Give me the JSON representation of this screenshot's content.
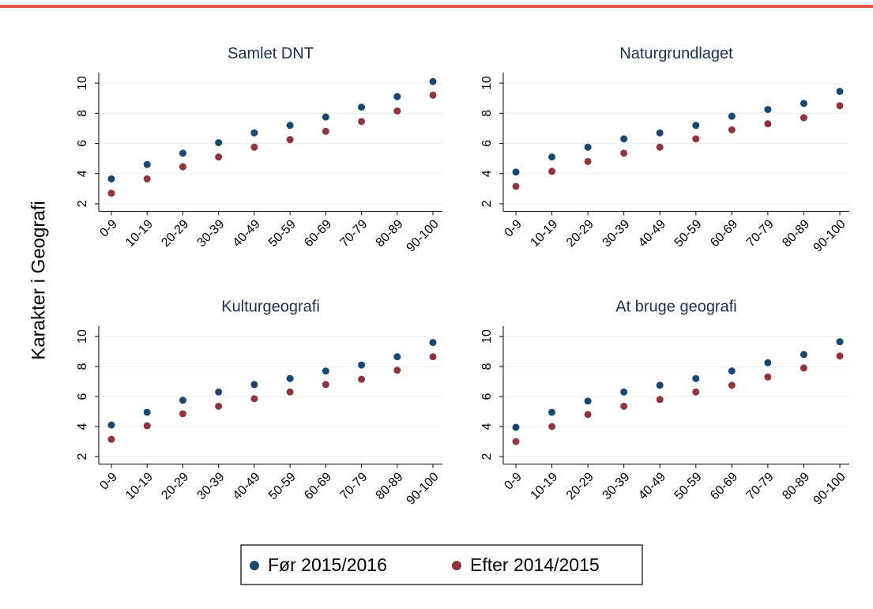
{
  "ylabel": "Karakter i Geografi",
  "chart_data": [
    {
      "type": "scatter",
      "title": "Samlet DNT",
      "categories": [
        "0-9",
        "10-19",
        "20-29",
        "30-39",
        "40-49",
        "50-59",
        "60-69",
        "70-79",
        "80-89",
        "90-100"
      ],
      "series": [
        {
          "name": "Før 2015/2016",
          "color": "#1a476f",
          "values": [
            3.65,
            4.6,
            5.35,
            6.05,
            6.7,
            7.2,
            7.75,
            8.4,
            9.1,
            10.1
          ]
        },
        {
          "name": "Efter 2014/2015",
          "color": "#90353b",
          "values": [
            2.7,
            3.65,
            4.45,
            5.1,
            5.75,
            6.25,
            6.8,
            7.45,
            8.15,
            9.2
          ]
        }
      ],
      "ylim": [
        1.5,
        10.7
      ],
      "yticks": [
        2,
        4,
        6,
        8,
        10
      ],
      "grid": true
    },
    {
      "type": "scatter",
      "title": "Naturgrundlaget",
      "categories": [
        "0-9",
        "10-19",
        "20-29",
        "30-39",
        "40-49",
        "50-59",
        "60-69",
        "70-79",
        "80-89",
        "90-100"
      ],
      "series": [
        {
          "name": "Før 2015/2016",
          "color": "#1a476f",
          "values": [
            4.1,
            5.1,
            5.75,
            6.3,
            6.7,
            7.2,
            7.8,
            8.25,
            8.65,
            9.45
          ]
        },
        {
          "name": "Efter 2014/2015",
          "color": "#90353b",
          "values": [
            3.15,
            4.15,
            4.8,
            5.35,
            5.75,
            6.3,
            6.9,
            7.3,
            7.7,
            8.5
          ]
        }
      ],
      "ylim": [
        1.5,
        10.7
      ],
      "yticks": [
        2,
        4,
        6,
        8,
        10
      ],
      "grid": true
    },
    {
      "type": "scatter",
      "title": "Kulturgeografi",
      "categories": [
        "0-9",
        "10-19",
        "20-29",
        "30-39",
        "40-49",
        "50-59",
        "60-69",
        "70-79",
        "80-89",
        "90-100"
      ],
      "series": [
        {
          "name": "Før 2015/2016",
          "color": "#1a476f",
          "values": [
            4.1,
            4.95,
            5.75,
            6.3,
            6.8,
            7.2,
            7.7,
            8.1,
            8.65,
            9.6
          ]
        },
        {
          "name": "Efter 2014/2015",
          "color": "#90353b",
          "values": [
            3.15,
            4.05,
            4.85,
            5.35,
            5.85,
            6.3,
            6.8,
            7.15,
            7.75,
            8.65
          ]
        }
      ],
      "ylim": [
        1.5,
        10.7
      ],
      "yticks": [
        2,
        4,
        6,
        8,
        10
      ],
      "grid": true
    },
    {
      "type": "scatter",
      "title": "At bruge geografi",
      "categories": [
        "0-9",
        "10-19",
        "20-29",
        "30-39",
        "40-49",
        "50-59",
        "60-69",
        "70-79",
        "80-89",
        "90-100"
      ],
      "series": [
        {
          "name": "Før 2015/2016",
          "color": "#1a476f",
          "values": [
            3.95,
            4.95,
            5.7,
            6.3,
            6.75,
            7.2,
            7.7,
            8.25,
            8.8,
            9.65
          ]
        },
        {
          "name": "Efter 2014/2015",
          "color": "#90353b",
          "values": [
            3.0,
            4.0,
            4.8,
            5.35,
            5.8,
            6.3,
            6.75,
            7.3,
            7.9,
            8.7
          ]
        }
      ],
      "ylim": [
        1.5,
        10.7
      ],
      "yticks": [
        2,
        4,
        6,
        8,
        10
      ],
      "grid": true
    }
  ]
}
